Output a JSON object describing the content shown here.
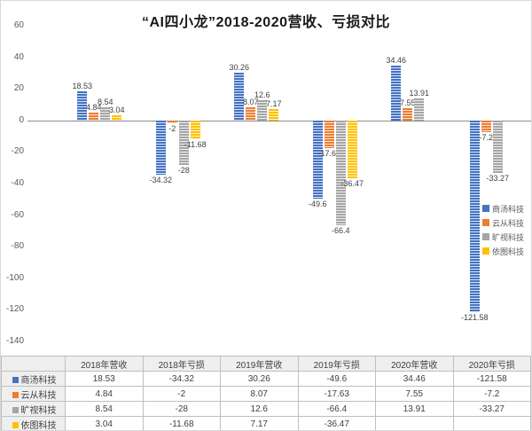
{
  "chart_data": {
    "type": "bar",
    "title": "“AI四小龙”2018-2020营收、亏损对比",
    "categories": [
      "2018年营收",
      "2018年亏损",
      "2019年营收",
      "2019年亏损",
      "2020年营收",
      "2020年亏损"
    ],
    "series": [
      {
        "name": "商汤科技",
        "color": "#4472C4",
        "values": [
          18.53,
          -34.32,
          30.26,
          -49.6,
          34.46,
          -121.58
        ]
      },
      {
        "name": "云从科技",
        "color": "#ED7D31",
        "values": [
          4.84,
          -2,
          8.07,
          -17.63,
          7.55,
          -7.2
        ]
      },
      {
        "name": "旷视科技",
        "color": "#A5A5A5",
        "values": [
          8.54,
          -28,
          12.6,
          -66.4,
          13.91,
          -33.27
        ]
      },
      {
        "name": "依图科技",
        "color": "#FFC000",
        "values": [
          3.04,
          -11.68,
          7.17,
          -36.47,
          null,
          null
        ]
      }
    ],
    "ylim": [
      -140,
      60
    ],
    "yticks": [
      60,
      40,
      20,
      0,
      -20,
      -40,
      -60,
      -80,
      -100,
      -120,
      -140
    ],
    "grid": "off",
    "legend_position": "right",
    "legend": [
      "商汤科技",
      "云从科技",
      "旷视科技",
      "依图科技"
    ]
  },
  "table": {
    "corner": "",
    "columns": [
      "2018年营收",
      "2018年亏损",
      "2019年营收",
      "2019年亏损",
      "2020年营收",
      "2020年亏损"
    ],
    "rows": [
      {
        "name": "商汤科技",
        "color": "#4472C4",
        "cells": [
          "18.53",
          "-34.32",
          "30.26",
          "-49.6",
          "34.46",
          "-121.58"
        ]
      },
      {
        "name": "云从科技",
        "color": "#ED7D31",
        "cells": [
          "4.84",
          "-2",
          "8.07",
          "-17.63",
          "7.55",
          "-7.2"
        ]
      },
      {
        "name": "旷视科技",
        "color": "#A5A5A5",
        "cells": [
          "8.54",
          "-28",
          "12.6",
          "-66.4",
          "13.91",
          "-33.27"
        ]
      },
      {
        "name": "依图科技",
        "color": "#FFC000",
        "cells": [
          "3.04",
          "-11.68",
          "7.17",
          "-36.47",
          "",
          ""
        ]
      }
    ]
  }
}
